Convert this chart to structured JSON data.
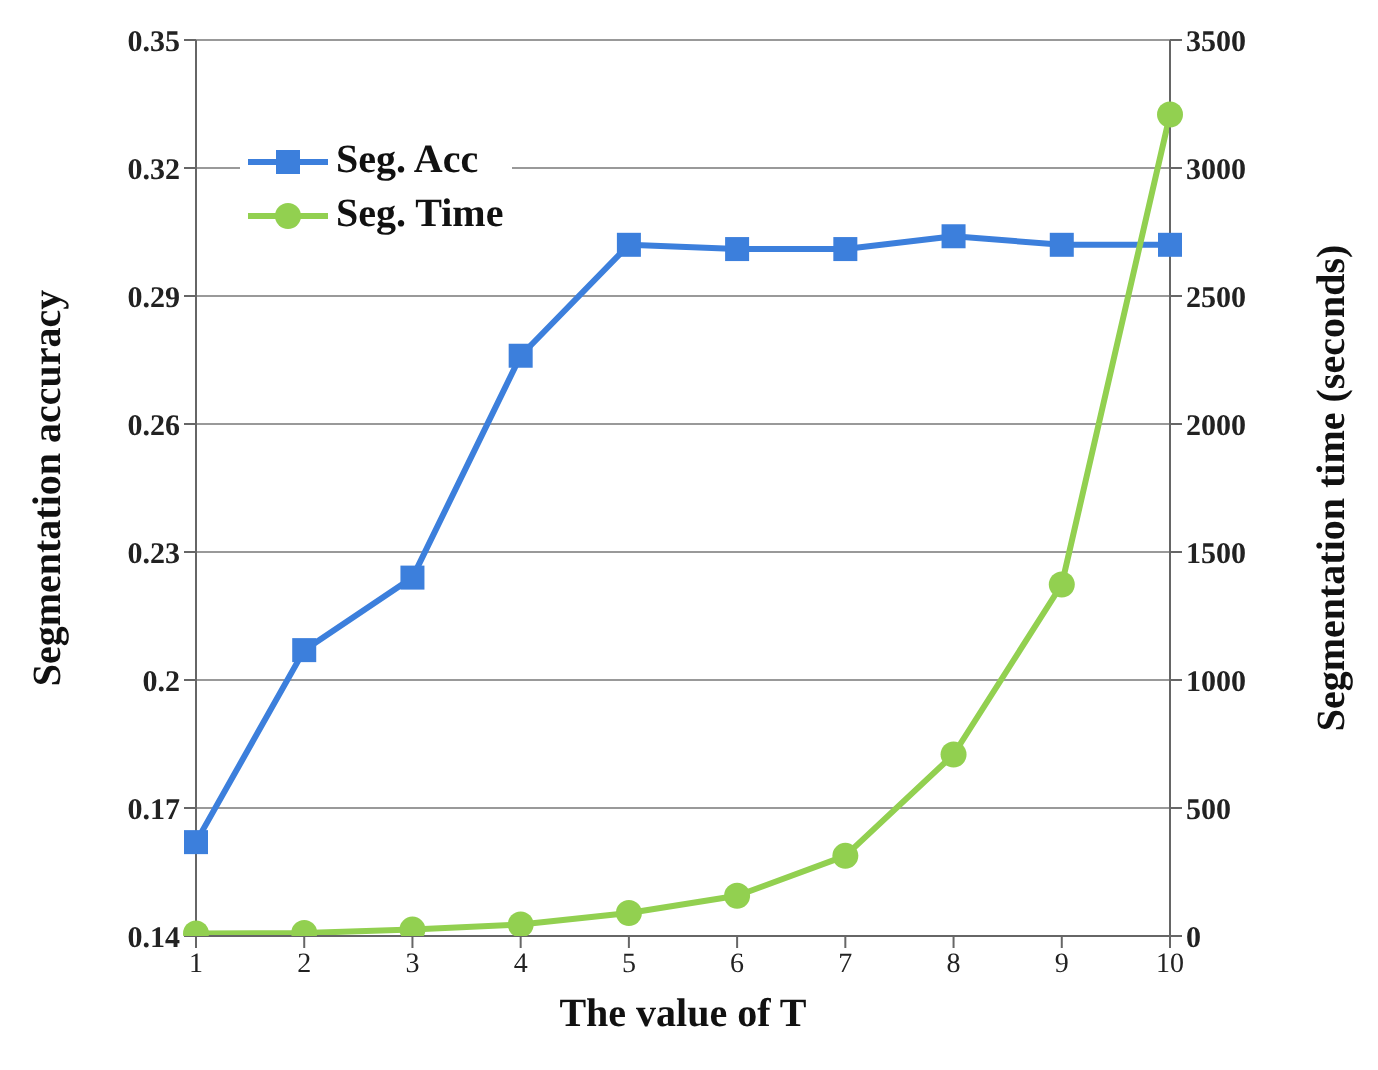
{
  "chart_data": {
    "type": "line",
    "xlabel": "The value of T",
    "ylabel": "Segmentation accuracy",
    "y2label": "Segmentation time (seconds)",
    "categories": [
      "1",
      "2",
      "3",
      "4",
      "5",
      "6",
      "7",
      "8",
      "9",
      "10"
    ],
    "series": [
      {
        "name": "Seg. Acc",
        "color": "#3c7fdc",
        "marker": "square",
        "values": [
          0.162,
          0.207,
          0.224,
          0.276,
          0.302,
          0.301,
          0.301,
          0.304,
          0.302,
          0.302
        ]
      },
      {
        "name": "Seg. Time",
        "color": "#92d050",
        "marker": "circle",
        "axis": "y2",
        "values": [
          10,
          12,
          25,
          45,
          90,
          157,
          313,
          709,
          1373,
          3209
        ]
      }
    ],
    "ylim": [
      0.14,
      0.35
    ],
    "yticks": [
      0.14,
      0.17,
      {
        "value": 0.2,
        "label": "0.2"
      },
      0.23,
      0.26,
      0.29,
      0.32,
      0.35
    ],
    "y2lim": [
      0,
      3500
    ],
    "y2ticks": [
      0,
      500,
      1000,
      1500,
      2000,
      2500,
      3000,
      3500
    ],
    "grid": "y",
    "legend": "top left"
  }
}
